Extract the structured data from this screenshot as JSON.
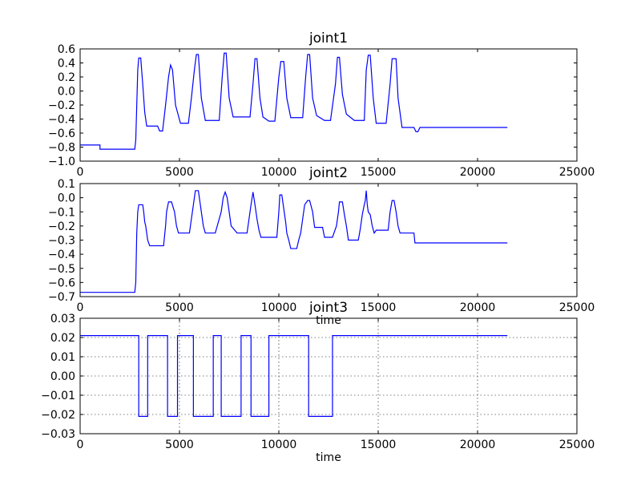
{
  "chart_data": [
    {
      "type": "line",
      "title": "joint1",
      "xlabel": "",
      "ylabel": "",
      "xlim": [
        0,
        25000
      ],
      "ylim": [
        -1.0,
        0.6
      ],
      "grid": false,
      "xticks": [
        "0",
        "5000",
        "10000",
        "15000",
        "20000",
        "25000"
      ],
      "yticks": [
        "−1.0",
        "−0.8",
        "−0.6",
        "−0.4",
        "−0.2",
        "0.0",
        "0.2",
        "0.4",
        "0.6"
      ],
      "series": [
        {
          "color": "#0000ff",
          "x": [
            0,
            1000,
            1000,
            2750,
            2800,
            2850,
            2900,
            2950,
            3050,
            3150,
            3250,
            3350,
            3500,
            3900,
            4000,
            4150,
            4300,
            4450,
            4550,
            4650,
            4800,
            5050,
            5300,
            5450,
            5600,
            5750,
            5850,
            5950,
            6100,
            6300,
            6550,
            6800,
            7000,
            7150,
            7250,
            7350,
            7500,
            7700,
            7850,
            8050,
            8300,
            8550,
            8700,
            8800,
            8900,
            9050,
            9200,
            9500,
            9800,
            10000,
            10100,
            10250,
            10400,
            10600,
            11000,
            11200,
            11350,
            11450,
            11550,
            11700,
            11900,
            12300,
            12600,
            12850,
            12950,
            13050,
            13200,
            13400,
            13800,
            14000,
            14300,
            14400,
            14500,
            14600,
            14750,
            14900,
            15200,
            15400,
            15600,
            15700,
            15800,
            15900,
            16000,
            16200,
            16800,
            16900,
            17000,
            17100,
            17500,
            21500
          ],
          "y": [
            -0.77,
            -0.77,
            -0.83,
            -0.83,
            -0.7,
            -0.2,
            0.3,
            0.47,
            0.47,
            0.1,
            -0.3,
            -0.5,
            -0.5,
            -0.5,
            -0.57,
            -0.57,
            -0.2,
            0.2,
            0.37,
            0.3,
            -0.2,
            -0.46,
            -0.46,
            -0.46,
            -0.1,
            0.3,
            0.52,
            0.52,
            -0.1,
            -0.42,
            -0.42,
            -0.42,
            -0.42,
            0.2,
            0.54,
            0.54,
            -0.1,
            -0.37,
            -0.37,
            -0.37,
            -0.37,
            -0.37,
            0.1,
            0.46,
            0.46,
            -0.1,
            -0.37,
            -0.43,
            -0.43,
            0.2,
            0.42,
            0.42,
            -0.1,
            -0.38,
            -0.38,
            -0.38,
            0.2,
            0.52,
            0.52,
            -0.1,
            -0.35,
            -0.42,
            -0.42,
            0.1,
            0.48,
            0.48,
            -0.05,
            -0.33,
            -0.42,
            -0.42,
            -0.42,
            0.3,
            0.51,
            0.51,
            -0.1,
            -0.46,
            -0.46,
            -0.46,
            0.1,
            0.46,
            0.46,
            0.46,
            -0.1,
            -0.52,
            -0.52,
            -0.58,
            -0.58,
            -0.52,
            -0.52,
            -0.52
          ]
        }
      ]
    },
    {
      "type": "line",
      "title": "joint2",
      "xlabel": "time",
      "ylabel": "",
      "xlim": [
        0,
        25000
      ],
      "ylim": [
        -0.7,
        0.1
      ],
      "grid": false,
      "xticks": [
        "0",
        "5000",
        "10000",
        "15000",
        "20000",
        "25000"
      ],
      "yticks": [
        "−0.7",
        "−0.6",
        "−0.5",
        "−0.4",
        "−0.3",
        "−0.2",
        "−0.1",
        "0.0",
        "0.1"
      ],
      "series": [
        {
          "color": "#0000ff",
          "x": [
            0,
            2750,
            2800,
            2850,
            2900,
            2950,
            3000,
            3150,
            3200,
            3250,
            3300,
            3350,
            3400,
            3500,
            3700,
            4200,
            4300,
            4350,
            4450,
            4600,
            4750,
            4800,
            4850,
            4950,
            5000,
            5500,
            5600,
            5650,
            5750,
            5800,
            5950,
            6050,
            6100,
            6200,
            6300,
            6600,
            6800,
            7000,
            7100,
            7200,
            7300,
            7400,
            7500,
            7600,
            7900,
            8300,
            8400,
            8500,
            8600,
            8700,
            8800,
            8900,
            9000,
            9100,
            9300,
            9900,
            10000,
            10050,
            10150,
            10250,
            10350,
            10400,
            10500,
            10600,
            10900,
            11000,
            11100,
            11200,
            11300,
            11450,
            11550,
            11700,
            11800,
            12200,
            12300,
            12700,
            12900,
            13000,
            13050,
            13200,
            13300,
            13400,
            13500,
            14000,
            14100,
            14200,
            14300,
            14350,
            14400,
            14450,
            14500,
            14600,
            14700,
            14800,
            14900,
            15200,
            15500,
            15600,
            15700,
            15800,
            15900,
            16000,
            16100,
            16800,
            16850,
            21500
          ],
          "y": [
            -0.67,
            -0.67,
            -0.6,
            -0.25,
            -0.1,
            -0.05,
            -0.05,
            -0.05,
            -0.1,
            -0.17,
            -0.2,
            -0.25,
            -0.3,
            -0.34,
            -0.34,
            -0.34,
            -0.2,
            -0.1,
            -0.03,
            -0.03,
            -0.1,
            -0.15,
            -0.2,
            -0.25,
            -0.25,
            -0.25,
            -0.15,
            -0.1,
            0.0,
            0.05,
            0.05,
            -0.05,
            -0.1,
            -0.2,
            -0.25,
            -0.25,
            -0.25,
            -0.15,
            -0.1,
            0.0,
            0.04,
            0.0,
            -0.1,
            -0.2,
            -0.25,
            -0.25,
            -0.25,
            -0.15,
            -0.05,
            0.04,
            -0.05,
            -0.15,
            -0.23,
            -0.28,
            -0.28,
            -0.28,
            -0.1,
            0.02,
            0.02,
            -0.08,
            -0.18,
            -0.25,
            -0.3,
            -0.36,
            -0.36,
            -0.3,
            -0.25,
            -0.15,
            -0.05,
            -0.02,
            -0.02,
            -0.1,
            -0.21,
            -0.21,
            -0.28,
            -0.28,
            -0.2,
            -0.1,
            -0.03,
            -0.03,
            -0.12,
            -0.2,
            -0.3,
            -0.3,
            -0.22,
            -0.12,
            -0.05,
            -0.02,
            0.05,
            -0.05,
            -0.1,
            -0.12,
            -0.2,
            -0.25,
            -0.23,
            -0.23,
            -0.23,
            -0.1,
            -0.02,
            -0.02,
            -0.1,
            -0.2,
            -0.25,
            -0.25,
            -0.32,
            -0.32
          ]
        }
      ]
    },
    {
      "type": "line",
      "title": "joint3",
      "xlabel": "time",
      "ylabel": "",
      "xlim": [
        0,
        25000
      ],
      "ylim": [
        -0.03,
        0.03
      ],
      "grid": true,
      "xticks": [
        "0",
        "5000",
        "10000",
        "15000",
        "20000",
        "25000"
      ],
      "yticks": [
        "−0.03",
        "−0.02",
        "−0.01",
        "0.00",
        "0.01",
        "0.02",
        "0.03"
      ],
      "series": [
        {
          "color": "#0000ff",
          "x": [
            0,
            2950,
            2950,
            3400,
            3400,
            4400,
            4400,
            4900,
            4900,
            5700,
            5700,
            6700,
            6700,
            7100,
            7100,
            8100,
            8100,
            8600,
            8600,
            9500,
            9500,
            11500,
            11500,
            12700,
            12700,
            21500
          ],
          "y": [
            0.021,
            0.021,
            -0.021,
            -0.021,
            0.021,
            0.021,
            -0.021,
            -0.021,
            0.021,
            0.021,
            -0.021,
            -0.021,
            0.021,
            0.021,
            -0.021,
            -0.021,
            0.021,
            0.021,
            -0.021,
            -0.021,
            0.021,
            0.021,
            -0.021,
            -0.021,
            0.021,
            0.021
          ]
        }
      ]
    }
  ]
}
